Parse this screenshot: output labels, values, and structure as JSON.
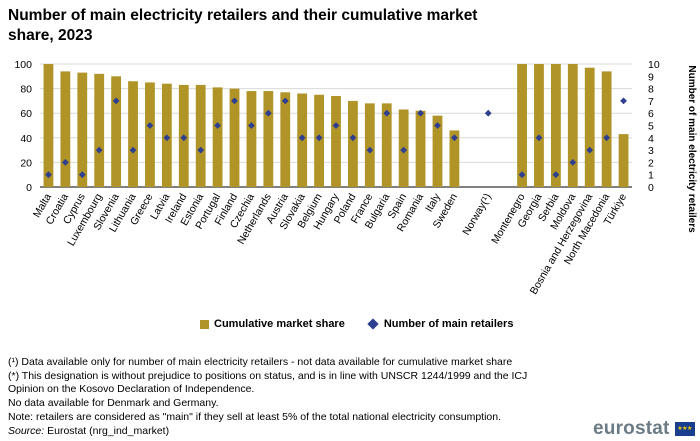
{
  "header": {
    "title_line1": "Number of main electricity retailers and their cumulative market",
    "title_line2": "share, 2023"
  },
  "colors": {
    "bar": "#b09428",
    "marker": "#2e3f8f",
    "grid": "#d9d9d9"
  },
  "legend": {
    "bar_label": "Cumulative market share",
    "marker_label": "Number of main retailers"
  },
  "chart_data": {
    "type": "bar",
    "title": "Number of main electricity retailers and their cumulative market share, 2023",
    "categories": [
      "Malta",
      "Croatia",
      "Cyprus",
      "Luxembourg",
      "Slovenia",
      "Lithuania",
      "Greece",
      "Latvia",
      "Ireland",
      "Estonia",
      "Portugal",
      "Finland",
      "Czechia",
      "Netherlands",
      "Austria",
      "Slovakia",
      "Belgium",
      "Hungary",
      "Poland",
      "France",
      "Bulgaria",
      "Spain",
      "Romania",
      "Italy",
      "Sweden",
      "",
      "Norway(¹)",
      "",
      "Montenegro",
      "Georgia",
      "Serbia",
      "Moldova",
      "Bosnia and Herzegovina",
      "North Macedonia",
      "Türkiye"
    ],
    "series": [
      {
        "name": "Cumulative market share",
        "type": "bar",
        "axis": "left",
        "values": [
          100,
          94,
          93,
          92,
          90,
          86,
          85,
          84,
          83,
          83,
          81,
          80,
          78,
          78,
          77,
          76,
          75,
          74,
          70,
          68,
          68,
          63,
          62,
          58,
          46,
          null,
          null,
          null,
          100,
          100,
          100,
          100,
          97,
          94,
          43
        ]
      },
      {
        "name": "Number of main retailers",
        "type": "scatter",
        "axis": "right",
        "values": [
          1,
          2,
          1,
          3,
          7,
          3,
          5,
          4,
          4,
          3,
          5,
          7,
          5,
          6,
          7,
          4,
          4,
          5,
          4,
          3,
          6,
          3,
          6,
          5,
          4,
          null,
          6,
          null,
          1,
          4,
          1,
          2,
          3,
          4,
          7
        ]
      }
    ],
    "ylim_left": [
      0,
      100
    ],
    "yticks_left": [
      0,
      20,
      40,
      60,
      80,
      100
    ],
    "ylim_right": [
      0,
      10
    ],
    "yticks_right": [
      0,
      1,
      2,
      3,
      4,
      5,
      6,
      7,
      8,
      9,
      10
    ],
    "ylabel_right": "Number of main electricity retailers",
    "grid": true,
    "legend_position": "bottom"
  },
  "notes": {
    "line1": "(¹) Data available only for number of main electricity retailers - not data available for cumulative  market share",
    "line2": "(*) This designation is without prejudice to positions on status, and is in line with UNSCR 1244/1999 and the ICJ",
    "line3": "Opinion on the Kosovo Declaration of Independence.",
    "line4": "No data available for Denmark and Germany.",
    "line5": "Note: retailers are considered as \"main\" if they sell at least 5% of the total national electricity consumption.",
    "source_label": "Source:",
    "source_text": " Eurostat (nrg_ind_market)"
  },
  "logo": {
    "text": "eurostat"
  }
}
